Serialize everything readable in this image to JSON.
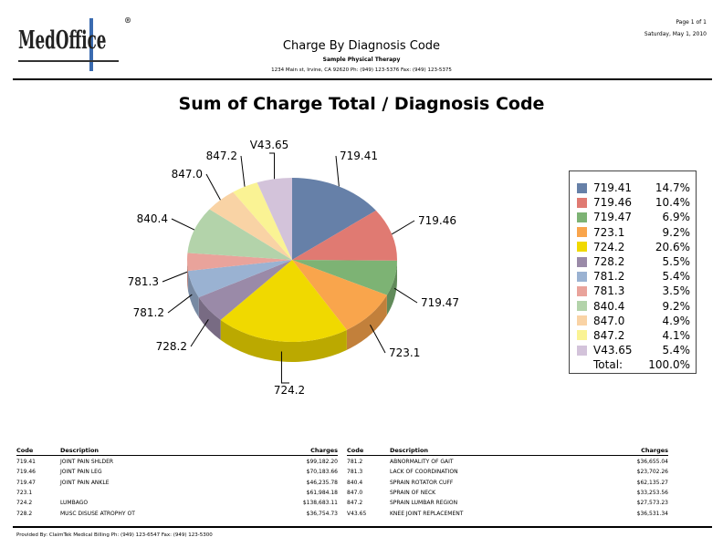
{
  "header": {
    "logo_text": "MedOffice",
    "page": "Page 1 of 1",
    "date": "Saturday, May 1, 2010",
    "title": "Charge By Diagnosis Code",
    "practice": "Sample Physical Therapy",
    "address": "1234 Main st, Irvine, CA 92620 Ph: (949) 123-5376 Fax: (949) 123-5375"
  },
  "chart_data": {
    "type": "pie",
    "title": "Sum of Charge Total / Diagnosis Code",
    "categories": [
      "719.41",
      "719.46",
      "719.47",
      "723.1",
      "724.2",
      "728.2",
      "781.2",
      "781.3",
      "840.4",
      "847.0",
      "847.2",
      "V43.65"
    ],
    "values": [
      14.7,
      10.4,
      6.9,
      9.2,
      20.6,
      5.5,
      5.4,
      3.5,
      9.2,
      4.9,
      4.1,
      5.4
    ],
    "value_labels": [
      "14.7%",
      "10.4%",
      "6.9%",
      "9.2%",
      "20.6%",
      "5.5%",
      "5.4%",
      "3.5%",
      "9.2%",
      "4.9%",
      "4.1%",
      "5.4%"
    ],
    "colors": [
      "#6680a8",
      "#e07a72",
      "#7db374",
      "#f9a54c",
      "#f0d900",
      "#9a8aa8",
      "#9ab2d2",
      "#e9a39b",
      "#b3d3aa",
      "#f9d3a5",
      "#faf394",
      "#d3c3da"
    ],
    "legend": {
      "placement": "right",
      "total_label": "Total:",
      "total_value": "100.0%"
    },
    "style": "3d"
  },
  "table": {
    "headers": {
      "code": "Code",
      "description": "Description",
      "charges": "Charges"
    },
    "left": [
      {
        "code": "719.41",
        "description": "JOINT PAIN SHLDER",
        "charges": "$99,182.20"
      },
      {
        "code": "719.46",
        "description": "JOINT PAIN LEG",
        "charges": "$70,183.66"
      },
      {
        "code": "719.47",
        "description": "JOINT PAIN ANKLE",
        "charges": "$46,235.78"
      },
      {
        "code": "723.1",
        "description": "",
        "charges": "$61,984.18"
      },
      {
        "code": "724.2",
        "description": "LUMBAGO",
        "charges": "$138,683.11"
      },
      {
        "code": "728.2",
        "description": "MUSC DISUSE ATROPHY OT",
        "charges": "$36,754.73"
      }
    ],
    "right": [
      {
        "code": "781.2",
        "description": "ABNORMALITY OF GAIT",
        "charges": "$36,655.04"
      },
      {
        "code": "781.3",
        "description": "LACK OF COORDINATION",
        "charges": "$23,702.26"
      },
      {
        "code": "840.4",
        "description": "SPRAIN ROTATOR CUFF",
        "charges": "$62,135.27"
      },
      {
        "code": "847.0",
        "description": "SPRAIN OF NECK",
        "charges": "$33,253.56"
      },
      {
        "code": "847.2",
        "description": "SPRAIN LUMBAR REGION",
        "charges": "$27,573.23"
      },
      {
        "code": "V43.65",
        "description": "KNEE JOINT REPLACEMENT",
        "charges": "$36,531.34"
      }
    ]
  },
  "footer": "Provided By: ClaimTek Medical Billing Ph: (949) 123-6547 Fax: (949) 123-5300"
}
